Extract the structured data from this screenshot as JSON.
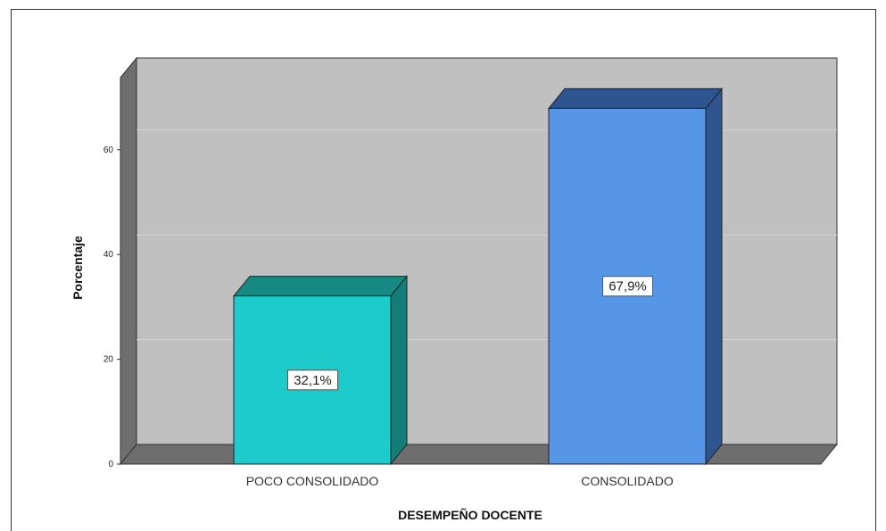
{
  "chart_data": {
    "type": "bar",
    "categories": [
      "POCO CONSOLIDADO",
      "CONSOLIDADO"
    ],
    "values": [
      32.1,
      67.9
    ],
    "data_labels": [
      "32,1%",
      "67,9%"
    ],
    "xlabel": "DESEMPEÑO DOCENTE",
    "ylabel": "Porcentaje",
    "ylim": [
      0,
      70
    ],
    "yticks": [
      0,
      20,
      40,
      60
    ],
    "ytick_labels": [
      "0",
      "20",
      "40",
      "60"
    ],
    "grid": true,
    "legend": "none",
    "colors": {
      "bar_front": [
        "#1ecbcb",
        "#5596e6"
      ],
      "bar_side": [
        "#137e78",
        "#2f5590"
      ],
      "bar_top": [
        "#168a82",
        "#2e5590"
      ],
      "plot_background": "#c0c0c0",
      "wall_side": "#6e6e6e",
      "floor": "#6e6e6e"
    }
  }
}
